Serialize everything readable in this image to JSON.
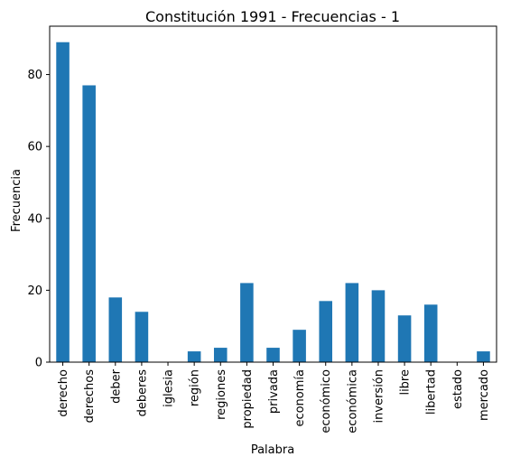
{
  "chart_data": {
    "type": "bar",
    "title": "Constitución 1991 - Frecuencias - 1",
    "xlabel": "Palabra",
    "ylabel": "Frecuencia",
    "categories": [
      "derecho",
      "derechos",
      "deber",
      "deberes",
      "iglesia",
      "región",
      "regiones",
      "propiedad",
      "privada",
      "economía",
      "económico",
      "económica",
      "inversión",
      "libre",
      "libertad",
      "estado",
      "mercado"
    ],
    "values": [
      89,
      77,
      18,
      14,
      0,
      3,
      4,
      22,
      4,
      9,
      17,
      22,
      20,
      13,
      16,
      0,
      3
    ],
    "ylim": [
      0,
      93.45
    ],
    "yticks": [
      0,
      20,
      40,
      60,
      80
    ],
    "grid": false,
    "legend": "none",
    "bar_color": "#1f77b4"
  }
}
